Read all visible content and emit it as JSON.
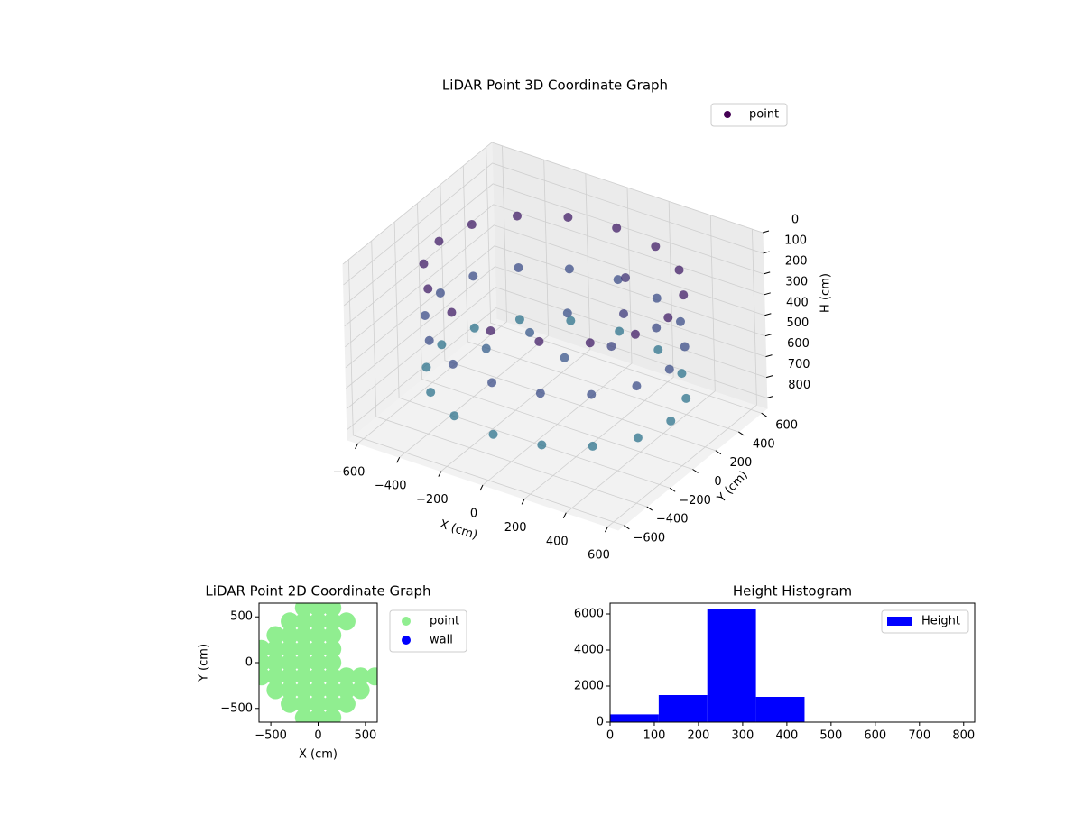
{
  "chart_data": [
    {
      "type": "scatter3d",
      "title": "LiDAR Point 3D Coordinate Graph",
      "xlabel": "X (cm)",
      "ylabel": "Y (cm)",
      "zlabel": "H (cm)",
      "xlim": [
        -650,
        650
      ],
      "ylim": [
        -650,
        650
      ],
      "zlim": [
        0,
        850
      ],
      "z_inverted": true,
      "xticks": [
        {
          "value": -600,
          "label": "−600"
        },
        {
          "value": -400,
          "label": "−400"
        },
        {
          "value": -200,
          "label": "−200"
        },
        0,
        200,
        400,
        600
      ],
      "yticks": [
        {
          "value": -600,
          "label": "−600"
        },
        {
          "value": -400,
          "label": "−400"
        },
        {
          "value": -200,
          "label": "−200"
        },
        0,
        200,
        400,
        600
      ],
      "zticks": [
        0,
        100,
        200,
        300,
        400,
        500,
        600,
        700,
        800
      ],
      "colormap": [
        "#440154",
        "#3b528b",
        "#21908d"
      ],
      "legend": "upper right",
      "grid": true,
      "series": [
        {
          "name": "point",
          "x": [
            550,
            508,
            389,
            210,
            0,
            -210,
            -389,
            -508,
            -550,
            -508,
            -389,
            -210,
            0,
            210,
            389,
            508,
            550,
            508,
            389,
            210,
            0,
            -210,
            -389,
            -508,
            -550,
            -508,
            -389,
            -210,
            0,
            210,
            389,
            508,
            550,
            508,
            389,
            210,
            0,
            -210,
            -389,
            -508,
            -550,
            -508,
            -389,
            -210,
            0,
            210,
            389,
            508,
            100,
            -150,
            250,
            300,
            -50,
            350,
            150,
            -250
          ],
          "y": [
            0,
            210,
            389,
            508,
            550,
            508,
            389,
            210,
            0,
            -210,
            -389,
            -508,
            -550,
            -508,
            -389,
            -210,
            0,
            210,
            389,
            508,
            550,
            508,
            389,
            210,
            0,
            -210,
            -389,
            -508,
            -550,
            -508,
            -389,
            -210,
            0,
            210,
            389,
            508,
            550,
            508,
            389,
            210,
            0,
            -210,
            -389,
            -508,
            -550,
            -508,
            -389,
            -210,
            -100,
            50,
            150,
            -50,
            200,
            250,
            350,
            -150
          ],
          "z": [
            150,
            150,
            150,
            150,
            150,
            150,
            150,
            150,
            150,
            150,
            150,
            150,
            150,
            150,
            150,
            150,
            400,
            400,
            400,
            400,
            400,
            400,
            400,
            400,
            400,
            400,
            400,
            400,
            400,
            400,
            400,
            400,
            650,
            650,
            650,
            650,
            650,
            650,
            650,
            650,
            650,
            650,
            650,
            650,
            650,
            650,
            650,
            650,
            450,
            480,
            300,
            350,
            420,
            380,
            250,
            500
          ]
        }
      ]
    },
    {
      "type": "scatter",
      "title": "LiDAR Point 2D Coordinate Graph",
      "xlabel": "X (cm)",
      "ylabel": "Y (cm)",
      "xlim": [
        -625,
        625
      ],
      "ylim": [
        -650,
        650
      ],
      "xticks": [
        {
          "value": -500,
          "label": "−500"
        },
        0,
        500
      ],
      "yticks": [
        {
          "value": -500,
          "label": "−500"
        },
        0,
        500
      ],
      "legend": "outside upper right",
      "series": [
        {
          "name": "point",
          "color": "#90ee90",
          "x": [
            -150,
            0,
            150,
            -300,
            -150,
            0,
            150,
            300,
            -450,
            -300,
            -150,
            0,
            150,
            -600,
            -450,
            -300,
            -150,
            0,
            150,
            -600,
            -450,
            -300,
            -150,
            0,
            150,
            -600,
            -450,
            -300,
            -150,
            0,
            150,
            300,
            450,
            600,
            -450,
            -300,
            -150,
            0,
            150,
            300,
            450,
            -300,
            -150,
            0,
            150,
            300,
            -150,
            0,
            150
          ],
          "y": [
            600,
            600,
            600,
            450,
            450,
            450,
            450,
            450,
            300,
            300,
            300,
            300,
            300,
            150,
            150,
            150,
            150,
            150,
            150,
            0,
            0,
            0,
            0,
            0,
            0,
            -150,
            -150,
            -150,
            -150,
            -150,
            -150,
            -150,
            -150,
            -150,
            -300,
            -300,
            -300,
            -300,
            -300,
            -300,
            -300,
            -450,
            -450,
            -450,
            -450,
            -450,
            -600,
            -600,
            -600
          ]
        },
        {
          "name": "wall",
          "color": "#0000ff",
          "x": [],
          "y": []
        }
      ]
    },
    {
      "type": "histogram",
      "title": "Height Histogram",
      "xlim": [
        0,
        825
      ],
      "ylim": [
        0,
        6600
      ],
      "xticks": [
        0,
        100,
        200,
        300,
        400,
        500,
        600,
        700,
        800
      ],
      "yticks": [
        0,
        2000,
        4000,
        6000
      ],
      "bins": [
        0,
        110,
        220,
        330,
        440,
        550,
        660,
        770,
        880
      ],
      "legend": "upper right",
      "series": [
        {
          "name": "Height",
          "color": "#0000ff",
          "values": [
            430,
            1500,
            6300,
            1400,
            0,
            0,
            0,
            0
          ]
        }
      ]
    }
  ]
}
